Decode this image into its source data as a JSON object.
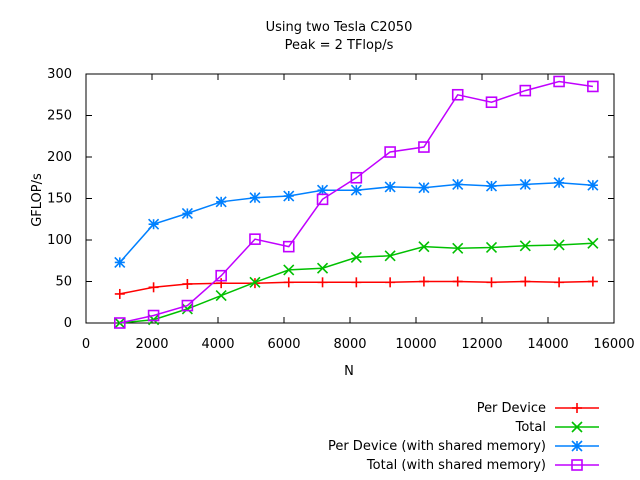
{
  "chart_data": {
    "type": "line",
    "title": "Using two Tesla C2050",
    "subtitle": "Peak = 2 TFlop/s",
    "xlabel": "N",
    "ylabel": "GFLOP/s",
    "xlim": [
      0,
      16000
    ],
    "ylim": [
      0,
      300
    ],
    "xticks": [
      0,
      2000,
      4000,
      6000,
      8000,
      10000,
      12000,
      14000,
      16000
    ],
    "yticks": [
      0,
      50,
      100,
      150,
      200,
      250,
      300
    ],
    "grid": false,
    "legend_position": "bottom-right",
    "x": [
      1024,
      2048,
      3072,
      4096,
      5120,
      6144,
      7168,
      8192,
      9216,
      10240,
      11264,
      12288,
      13312,
      14336,
      15360
    ],
    "series": [
      {
        "name": "Per Device",
        "color": "#ff0000",
        "marker": "plus",
        "values": [
          35,
          43,
          47,
          48,
          48,
          49,
          49,
          49,
          49,
          50,
          50,
          49,
          50,
          49,
          50
        ]
      },
      {
        "name": "Total",
        "color": "#00c000",
        "marker": "cross",
        "values": [
          0,
          4,
          17,
          33,
          49,
          64,
          66,
          79,
          81,
          92,
          90,
          91,
          93,
          94,
          96
        ]
      },
      {
        "name": "Per Device (with shared memory)",
        "color": "#0080ff",
        "marker": "star",
        "values": [
          73,
          119,
          132,
          146,
          151,
          153,
          160,
          160,
          164,
          163,
          167,
          165,
          167,
          169,
          166
        ]
      },
      {
        "name": "Total (with shared memory)",
        "color": "#c000ff",
        "marker": "square",
        "values": [
          0,
          9,
          21,
          57,
          101,
          92,
          149,
          175,
          206,
          212,
          275,
          266,
          280,
          291,
          285
        ]
      }
    ]
  }
}
